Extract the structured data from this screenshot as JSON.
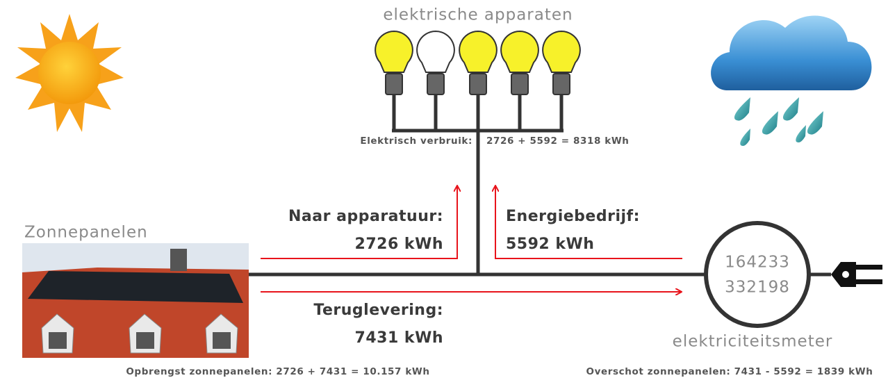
{
  "devices": {
    "label": "elektrische apparaten",
    "usage_label": "Elektrisch verbruik:",
    "usage_value": "2726 + 5592 = 8318 kWh"
  },
  "flows": {
    "to_devices": {
      "label": "Naar apparatuur:",
      "value": "2726 kWh"
    },
    "from_utility": {
      "label": "Energiebedrijf:",
      "value": "5592 kWh"
    },
    "feed_in": {
      "label": "Teruglevering:",
      "value": "7431 kWh"
    }
  },
  "solar": {
    "label": "Zonnepanelen",
    "yield": "Opbrengst zonnepanelen:  2726 + 7431 = 10.157 kWh"
  },
  "meter": {
    "reading_1": "164233",
    "reading_2": "332198",
    "label": "elektriciteitsmeter",
    "surplus": "Overschot zonnepanelen: 7431 - 5592 = 1839 kWh"
  }
}
